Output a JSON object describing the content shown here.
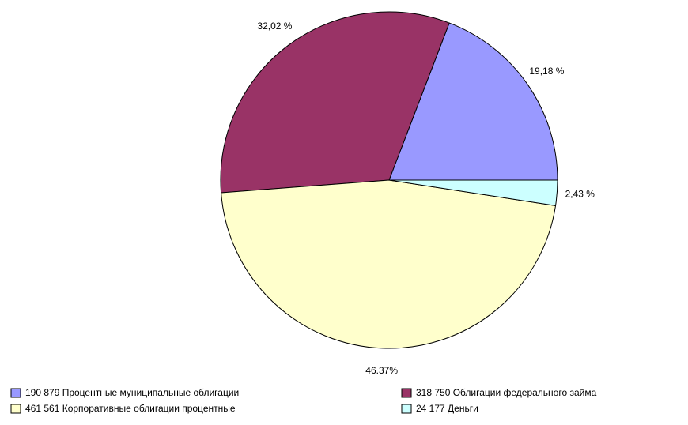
{
  "chart_data": {
    "type": "pie",
    "categories": [
      "190 879 Процентные муниципальные облигации",
      "318 750 Облигации федерального займа",
      "461 561 Корпоративные облигации процентные",
      "24 177 Деньги"
    ],
    "values": [
      19.18,
      32.02,
      46.37,
      2.43
    ],
    "value_labels": [
      "19,18 %",
      "32,02 %",
      "46.37%",
      "2,43 %"
    ],
    "colors": [
      "#9999ff",
      "#993366",
      "#ffffcc",
      "#ccffff"
    ]
  }
}
